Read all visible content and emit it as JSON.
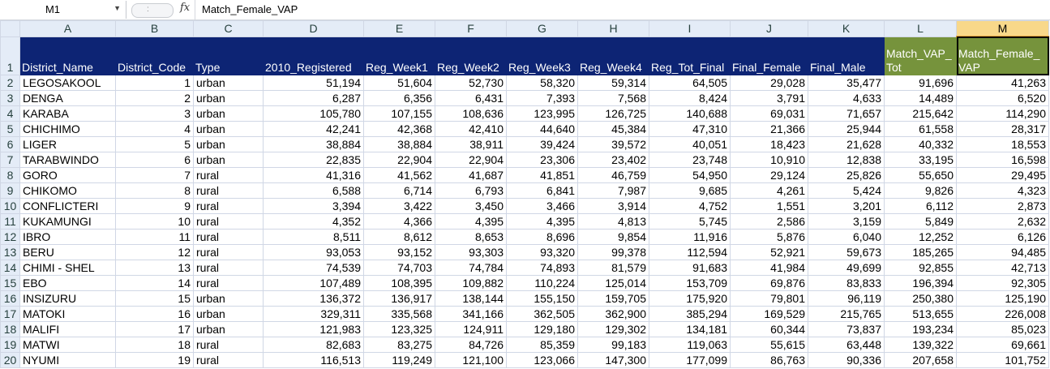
{
  "formula_bar": {
    "name_box": "M1",
    "fx": "fx",
    "content": "Match_Female_VAP"
  },
  "columns": [
    "A",
    "B",
    "C",
    "D",
    "E",
    "F",
    "G",
    "H",
    "I",
    "J",
    "K",
    "L",
    "M"
  ],
  "headers": [
    "District_Name",
    "District_Code",
    "Type",
    "2010_Registered",
    "Reg_Week1",
    "Reg_Week2",
    "Reg_Week3",
    "Reg_Week4",
    "Reg_Tot_Final",
    "Final_Female",
    "Final_Male",
    "Match_VAP_ Tot",
    "Match_Female_ VAP"
  ],
  "rows": [
    [
      "2",
      "LEGOSAKOOL",
      "1",
      "urban",
      "51,194",
      "51,604",
      "52,730",
      "58,320",
      "59,314",
      "64,505",
      "29,028",
      "35,477",
      "91,696",
      "41,263"
    ],
    [
      "3",
      "DENGA",
      "2",
      "urban",
      "6,287",
      "6,356",
      "6,431",
      "7,393",
      "7,568",
      "8,424",
      "3,791",
      "4,633",
      "14,489",
      "6,520"
    ],
    [
      "4",
      "KARABA",
      "3",
      "urban",
      "105,780",
      "107,155",
      "108,636",
      "123,995",
      "126,725",
      "140,688",
      "69,031",
      "71,657",
      "215,642",
      "114,290"
    ],
    [
      "5",
      "CHICHIMO",
      "4",
      "urban",
      "42,241",
      "42,368",
      "42,410",
      "44,640",
      "45,384",
      "47,310",
      "21,366",
      "25,944",
      "61,558",
      "28,317"
    ],
    [
      "6",
      "LIGER",
      "5",
      "urban",
      "38,884",
      "38,884",
      "38,911",
      "39,424",
      "39,572",
      "40,051",
      "18,423",
      "21,628",
      "40,332",
      "18,553"
    ],
    [
      "7",
      "TARABWINDO",
      "6",
      "urban",
      "22,835",
      "22,904",
      "22,904",
      "23,306",
      "23,402",
      "23,748",
      "10,910",
      "12,838",
      "33,195",
      "16,598"
    ],
    [
      "8",
      "GORO",
      "7",
      "rural",
      "41,316",
      "41,562",
      "41,687",
      "41,851",
      "46,759",
      "54,950",
      "29,124",
      "25,826",
      "55,650",
      "29,495"
    ],
    [
      "9",
      "CHIKOMO",
      "8",
      "rural",
      "6,588",
      "6,714",
      "6,793",
      "6,841",
      "7,987",
      "9,685",
      "4,261",
      "5,424",
      "9,826",
      "4,323"
    ],
    [
      "10",
      "CONFLICTERI",
      "9",
      "rural",
      "3,394",
      "3,422",
      "3,450",
      "3,466",
      "3,914",
      "4,752",
      "1,551",
      "3,201",
      "6,112",
      "2,873"
    ],
    [
      "11",
      "KUKAMUNGI",
      "10",
      "rural",
      "4,352",
      "4,366",
      "4,395",
      "4,395",
      "4,813",
      "5,745",
      "2,586",
      "3,159",
      "5,849",
      "2,632"
    ],
    [
      "12",
      "IBRO",
      "11",
      "rural",
      "8,511",
      "8,612",
      "8,653",
      "8,696",
      "9,854",
      "11,916",
      "5,876",
      "6,040",
      "12,252",
      "6,126"
    ],
    [
      "13",
      "BERU",
      "12",
      "rural",
      "93,053",
      "93,152",
      "93,303",
      "93,320",
      "99,378",
      "112,594",
      "52,921",
      "59,673",
      "185,265",
      "94,485"
    ],
    [
      "14",
      "CHIMI - SHEL",
      "13",
      "rural",
      "74,539",
      "74,703",
      "74,784",
      "74,893",
      "81,579",
      "91,683",
      "41,984",
      "49,699",
      "92,855",
      "42,713"
    ],
    [
      "15",
      "EBO",
      "14",
      "rural",
      "107,489",
      "108,395",
      "109,882",
      "110,224",
      "125,014",
      "153,709",
      "69,876",
      "83,833",
      "196,394",
      "92,305"
    ],
    [
      "16",
      "INSIZURU",
      "15",
      "urban",
      "136,372",
      "136,917",
      "138,144",
      "155,150",
      "159,705",
      "175,920",
      "79,801",
      "96,119",
      "250,380",
      "125,190"
    ],
    [
      "17",
      "MATOKI",
      "16",
      "urban",
      "329,311",
      "335,568",
      "341,166",
      "362,505",
      "362,900",
      "385,294",
      "169,529",
      "215,765",
      "513,655",
      "226,008"
    ],
    [
      "18",
      "MALIFI",
      "17",
      "urban",
      "121,983",
      "123,325",
      "124,911",
      "129,180",
      "129,302",
      "134,181",
      "60,344",
      "73,837",
      "193,234",
      "85,023"
    ],
    [
      "19",
      "MATWI",
      "18",
      "rural",
      "82,683",
      "83,275",
      "84,726",
      "85,359",
      "99,183",
      "119,063",
      "55,615",
      "63,448",
      "139,322",
      "69,661"
    ],
    [
      "20",
      "NYUMI",
      "19",
      "rural",
      "116,513",
      "119,249",
      "121,100",
      "123,066",
      "147,300",
      "177,099",
      "86,763",
      "90,336",
      "207,658",
      "101,752"
    ]
  ]
}
